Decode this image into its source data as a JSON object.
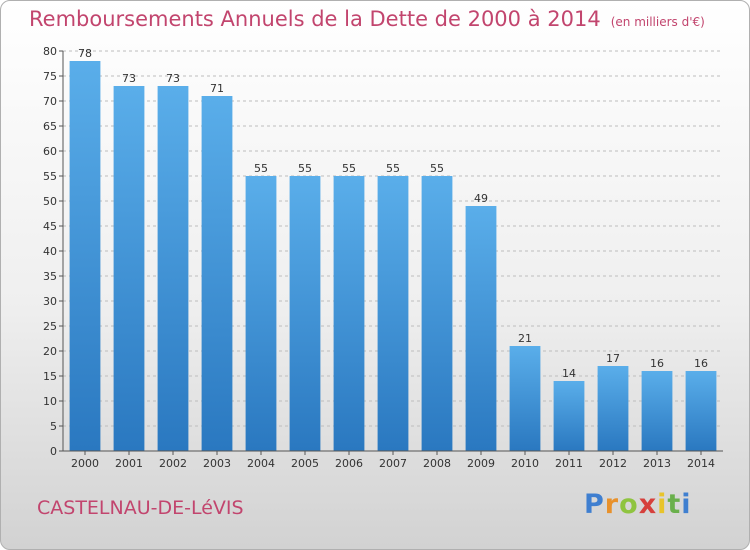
{
  "header": {
    "title": "Remboursements Annuels de la Dette de 2000 à 2014",
    "unit": "(en milliers d'€)"
  },
  "footer": {
    "town": "CASTELNAU-DE-LéVIS",
    "logo_letters": [
      {
        "char": "P",
        "color": "#3f7fd0"
      },
      {
        "char": "r",
        "color": "#e8912b"
      },
      {
        "char": "o",
        "color": "#8fc440"
      },
      {
        "char": "x",
        "color": "#d6403c"
      },
      {
        "char": "i",
        "color": "#e8c42b"
      },
      {
        "char": "t",
        "color": "#6ab04c"
      },
      {
        "char": "i",
        "color": "#3f7fd0"
      }
    ]
  },
  "colors": {
    "title": "#c2456e",
    "bar_top": "#5aaeea",
    "bar_bottom": "#2a78c0",
    "axis": "#555555",
    "grid": "#bdbdbd"
  },
  "chart_data": {
    "type": "bar",
    "categories": [
      "2000",
      "2001",
      "2002",
      "2003",
      "2004",
      "2005",
      "2006",
      "2007",
      "2008",
      "2009",
      "2010",
      "2011",
      "2012",
      "2013",
      "2014"
    ],
    "values": [
      78,
      73,
      73,
      71,
      55,
      55,
      55,
      55,
      55,
      49,
      21,
      14,
      17,
      16,
      16
    ],
    "ylim": [
      0,
      80
    ],
    "yticks": [
      0,
      5,
      10,
      15,
      20,
      25,
      30,
      35,
      40,
      45,
      50,
      55,
      60,
      65,
      70,
      75,
      80
    ],
    "grid": true,
    "legend": "none"
  }
}
